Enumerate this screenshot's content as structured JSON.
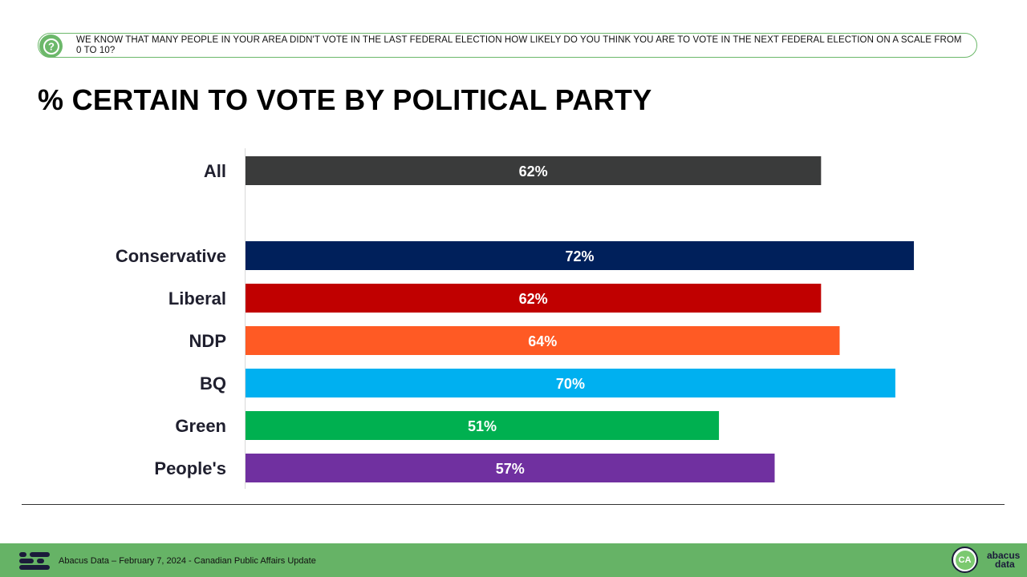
{
  "question": {
    "text": "WE KNOW THAT MANY PEOPLE IN YOUR AREA DIDN'T VOTE IN THE LAST FEDERAL ELECTION  HOW LIKELY DO YOU THINK YOU ARE TO VOTE IN THE NEXT FEDERAL ELECTION ON A SCALE FROM 0 TO 10?"
  },
  "footer": {
    "source": "Abacus Data – February 7, 2024 - Canadian Public Affairs Update",
    "brand_word_1": "abacus",
    "brand_word_2": "data",
    "brand_initials": "CA"
  },
  "chart_data": {
    "type": "bar",
    "orientation": "horizontal",
    "title": "% CERTAIN TO VOTE BY POLITICAL PARTY",
    "xlabel": "",
    "ylabel": "",
    "xlim": [
      0,
      80
    ],
    "unit": "%",
    "categories": [
      "All",
      "Conservative",
      "Liberal",
      "NDP",
      "BQ",
      "Green",
      "People's"
    ],
    "values": [
      62,
      72,
      62,
      64,
      70,
      51,
      57
    ],
    "colors": [
      "#3a3b3b",
      "#00205b",
      "#c00000",
      "#ff5a24",
      "#00b0f0",
      "#00b050",
      "#7030a0"
    ],
    "gap_after_first": true
  }
}
